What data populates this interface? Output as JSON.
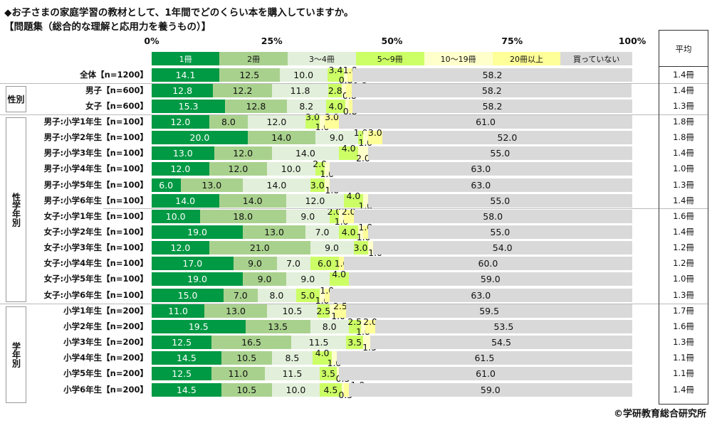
{
  "title": "◆お子さまの家庭学習の教材として、1年間でどのくらい本を購入していますか。",
  "subtitle": "【問題集（総合的な理解と応用力を養うもの）】",
  "avg_header": "平均",
  "copyright": "©学研教育総合研究所",
  "groups": [
    {
      "label": "性別"
    },
    {
      "label": "性学年別"
    },
    {
      "label": "学年別"
    }
  ],
  "chart_data": {
    "type": "bar",
    "orientation": "horizontal",
    "stacked": true,
    "xlim": [
      0,
      100
    ],
    "x_ticks": [
      "0%",
      "25%",
      "50%",
      "75%",
      "100%"
    ],
    "legend_placement": "top",
    "series": [
      {
        "name": "1冊",
        "color": "#009944",
        "text": "#fff"
      },
      {
        "name": "2冊",
        "color": "#a9d18e",
        "text": "#111"
      },
      {
        "name": "3～4冊",
        "color": "#e2efda",
        "text": "#111"
      },
      {
        "name": "5～9冊",
        "color": "#ccff66",
        "text": "#111"
      },
      {
        "name": "10～19冊",
        "color": "#ffffcc",
        "text": "#111"
      },
      {
        "name": "20冊以上",
        "color": "#ffff99",
        "text": "#111"
      },
      {
        "name": "買っていない",
        "color": "#d9d9d9",
        "text": "#111"
      }
    ],
    "categories": [
      "全体【n=1200】",
      "男子【n=600】",
      "女子【n=600】",
      "男子:小学1年生【n=100】",
      "男子:小学2年生【n=100】",
      "男子:小学3年生【n=100】",
      "男子:小学4年生【n=100】",
      "男子:小学5年生【n=100】",
      "男子:小学6年生【n=100】",
      "女子:小学1年生【n=100】",
      "女子:小学2年生【n=100】",
      "女子:小学3年生【n=100】",
      "女子:小学4年生【n=100】",
      "女子:小学5年生【n=100】",
      "女子:小学6年生【n=100】",
      "小学1年生【n=200】",
      "小学2年生【n=200】",
      "小学3年生【n=200】",
      "小学4年生【n=200】",
      "小学5年生【n=200】",
      "小学6年生【n=200】"
    ],
    "values": [
      [
        14.1,
        12.5,
        10.0,
        3.4,
        0.8,
        1.0,
        58.2
      ],
      [
        12.8,
        12.2,
        11.8,
        2.8,
        0.8,
        1.3,
        58.2
      ],
      [
        15.3,
        12.8,
        8.2,
        4.0,
        0.8,
        0.7,
        58.2
      ],
      [
        12.0,
        8.0,
        12.0,
        3.0,
        1.0,
        3.0,
        61.0
      ],
      [
        20.0,
        14.0,
        9.0,
        1.0,
        1.0,
        3.0,
        52.0
      ],
      [
        13.0,
        12.0,
        14.0,
        4.0,
        2.0,
        0,
        55.0
      ],
      [
        12.0,
        12.0,
        10.0,
        2.0,
        1.0,
        0,
        63.0
      ],
      [
        6.0,
        13.0,
        14.0,
        3.0,
        1.0,
        0,
        63.0
      ],
      [
        14.0,
        14.0,
        12.0,
        4.0,
        1.0,
        0,
        55.0
      ],
      [
        10.0,
        18.0,
        9.0,
        2.0,
        1.0,
        2.0,
        58.0
      ],
      [
        19.0,
        13.0,
        7.0,
        4.0,
        1.0,
        1.0,
        55.0
      ],
      [
        12.0,
        21.0,
        9.0,
        3.0,
        1.0,
        0,
        54.0
      ],
      [
        17.0,
        9.0,
        7.0,
        6.0,
        0,
        1.0,
        60.0
      ],
      [
        19.0,
        9.0,
        9.0,
        4.0,
        0,
        0,
        59.0
      ],
      [
        15.0,
        7.0,
        8.0,
        5.0,
        1.0,
        1.0,
        63.0
      ],
      [
        11.0,
        13.0,
        10.5,
        2.5,
        1.0,
        2.5,
        59.5
      ],
      [
        19.5,
        13.5,
        8.0,
        2.5,
        1.0,
        2.0,
        53.5
      ],
      [
        12.5,
        16.5,
        11.5,
        3.5,
        1.5,
        0,
        54.5
      ],
      [
        14.5,
        10.5,
        8.5,
        4.0,
        1.0,
        0,
        61.5
      ],
      [
        12.5,
        11.0,
        11.5,
        3.5,
        0.5,
        0,
        61.0
      ],
      [
        14.5,
        10.5,
        10.0,
        4.5,
        0.5,
        1.0,
        59.0
      ]
    ],
    "averages": [
      "1.4冊",
      "1.4冊",
      "1.3冊",
      "1.8冊",
      "1.8冊",
      "1.4冊",
      "1.0冊",
      "1.3冊",
      "1.4冊",
      "1.6冊",
      "1.4冊",
      "1.2冊",
      "1.2冊",
      "1.0冊",
      "1.3冊",
      "1.7冊",
      "1.6冊",
      "1.3冊",
      "1.1冊",
      "1.1冊",
      "1.4冊"
    ]
  }
}
